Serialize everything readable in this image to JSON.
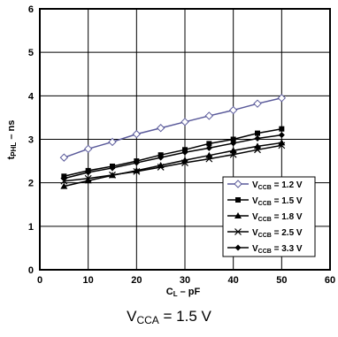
{
  "chart_data": {
    "type": "line",
    "title": "",
    "xlabel": "C",
    "xlabel_sub": "L",
    "xlabel_suffix": " – pF",
    "ylabel": "t",
    "ylabel_sub": "PHL",
    "ylabel_suffix": " – ns",
    "xlim": [
      0,
      60
    ],
    "ylim": [
      0,
      6
    ],
    "xticks": [
      "0",
      "10",
      "20",
      "30",
      "40",
      "50",
      "60"
    ],
    "yticks": [
      "0",
      "1",
      "2",
      "3",
      "4",
      "5",
      "6"
    ],
    "grid": true,
    "legend_position": "bottom-right",
    "x": [
      5,
      10,
      15,
      20,
      25,
      30,
      35,
      40,
      45,
      50
    ],
    "series": [
      {
        "name": "V",
        "name_sub": "CCB",
        "name_suffix": " = 1.2 V",
        "marker": "diamond-open",
        "color": "#5a5a9a",
        "values": [
          2.58,
          2.78,
          2.94,
          3.12,
          3.26,
          3.4,
          3.54,
          3.67,
          3.82,
          3.95
        ]
      },
      {
        "name": "V",
        "name_sub": "CCB",
        "name_suffix": " = 1.5 V",
        "marker": "square",
        "color": "#000000",
        "values": [
          2.15,
          2.28,
          2.38,
          2.5,
          2.64,
          2.76,
          2.9,
          3.0,
          3.14,
          3.24
        ]
      },
      {
        "name": "V",
        "name_sub": "CCB",
        "name_suffix": " = 1.8 V",
        "marker": "triangle",
        "color": "#000000",
        "values": [
          1.92,
          2.05,
          2.17,
          2.28,
          2.4,
          2.52,
          2.63,
          2.74,
          2.84,
          2.92
        ]
      },
      {
        "name": "V",
        "name_sub": "CCB",
        "name_suffix": " = 2.5 V",
        "marker": "x",
        "color": "#000000",
        "values": [
          2.04,
          2.1,
          2.18,
          2.26,
          2.36,
          2.46,
          2.55,
          2.65,
          2.76,
          2.86
        ]
      },
      {
        "name": "V",
        "name_sub": "CCB",
        "name_suffix": " = 3.3 V",
        "marker": "diamond",
        "color": "#000000",
        "values": [
          2.1,
          2.24,
          2.34,
          2.46,
          2.58,
          2.7,
          2.8,
          2.91,
          3.02,
          3.1
        ]
      }
    ]
  },
  "caption": {
    "prefix": "V",
    "sub": "CCA",
    "suffix": " = 1.5 V"
  }
}
